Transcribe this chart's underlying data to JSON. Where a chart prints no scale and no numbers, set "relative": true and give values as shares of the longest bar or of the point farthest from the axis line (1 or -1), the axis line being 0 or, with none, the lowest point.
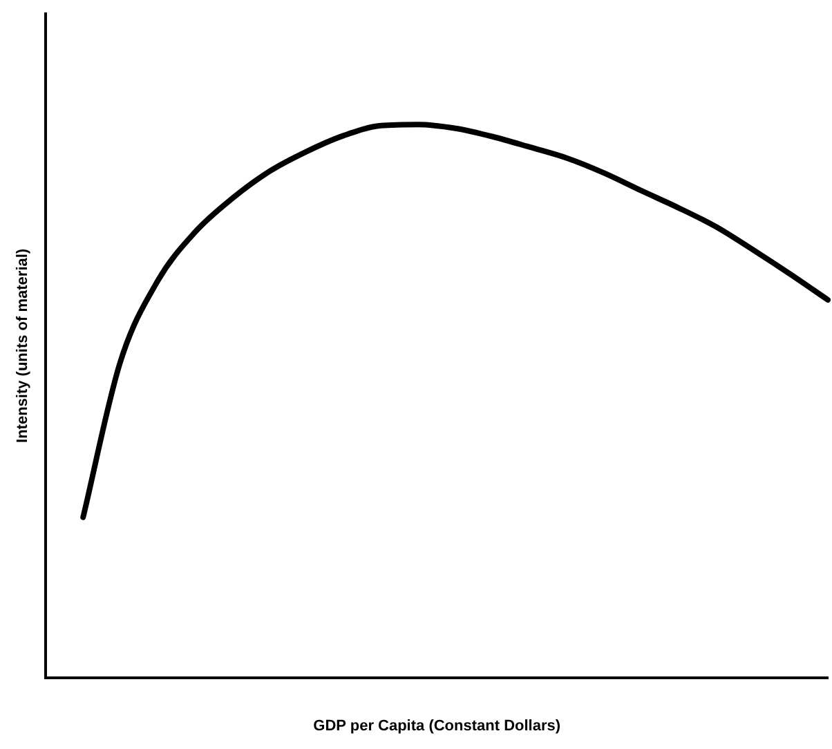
{
  "chart_data": {
    "type": "line",
    "relative": true,
    "xlabel": "GDP per Capita (Constant Dollars)",
    "ylabel": "Intensity (units of material)",
    "categories": [
      null,
      null,
      null,
      null,
      null,
      null,
      null,
      null,
      null,
      null,
      null,
      null,
      null,
      null,
      null,
      null,
      null,
      null,
      null,
      null,
      null,
      null
    ],
    "series": [
      {
        "color": "#000000",
        "values": [
          null,
          0.29,
          0.571,
          0.717,
          0.805,
          0.866,
          0.915,
          0.951,
          0.98,
          0.998,
          1,
          0.993,
          0.978,
          0.959,
          0.939,
          0.912,
          0.88,
          0.849,
          0.815,
          0.773,
          0.729,
          0.683
        ]
      }
    ],
    "grid": false,
    "legend": false,
    "marker": "none",
    "line_style": "solid"
  }
}
